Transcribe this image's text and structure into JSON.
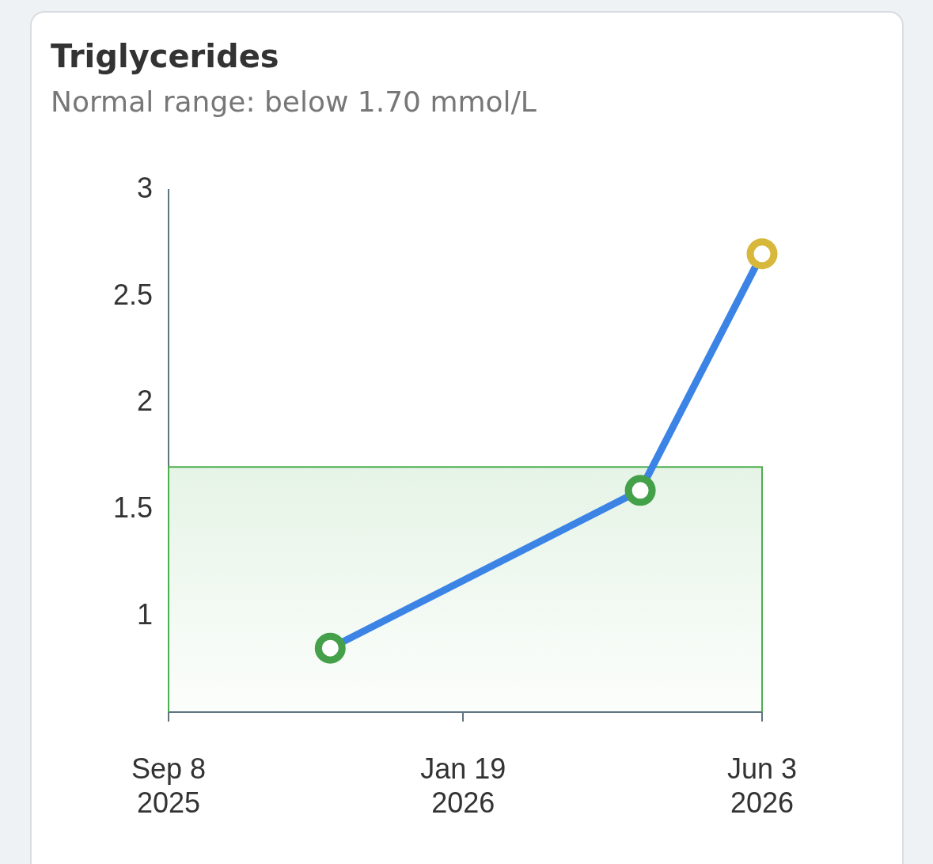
{
  "chart_data": {
    "type": "line",
    "title": "Triglycerides",
    "subtitle": "Normal range: below 1.70 mmol/L",
    "x": [
      "2025-11-20",
      "2026-04-09",
      "2026-06-03"
    ],
    "series": [
      {
        "color": "#3b84e6",
        "colors": [
          "#44a049",
          "#44a049",
          "#d8b83a"
        ],
        "values": [
          0.85,
          1.59,
          2.7
        ]
      }
    ],
    "xlim": [
      "2025-09-08",
      "2026-06-03"
    ],
    "xticks": [
      {
        "value": "2025-09-08",
        "label": "Sep 8 2025"
      },
      {
        "value": "2026-01-19",
        "label": "Jan 19 2026"
      },
      {
        "value": "2026-06-03",
        "label": "Jun 3 2026"
      }
    ],
    "ylim": [
      0.55,
      3
    ],
    "yticks": [
      1,
      1.5,
      2,
      2.5,
      3
    ],
    "bands": [
      {
        "axis": "y",
        "from": 0.55,
        "to": 1.7,
        "color": "#4caf50"
      }
    ],
    "grid": false,
    "legend": false,
    "marker": "circle",
    "line_style": "solid"
  }
}
